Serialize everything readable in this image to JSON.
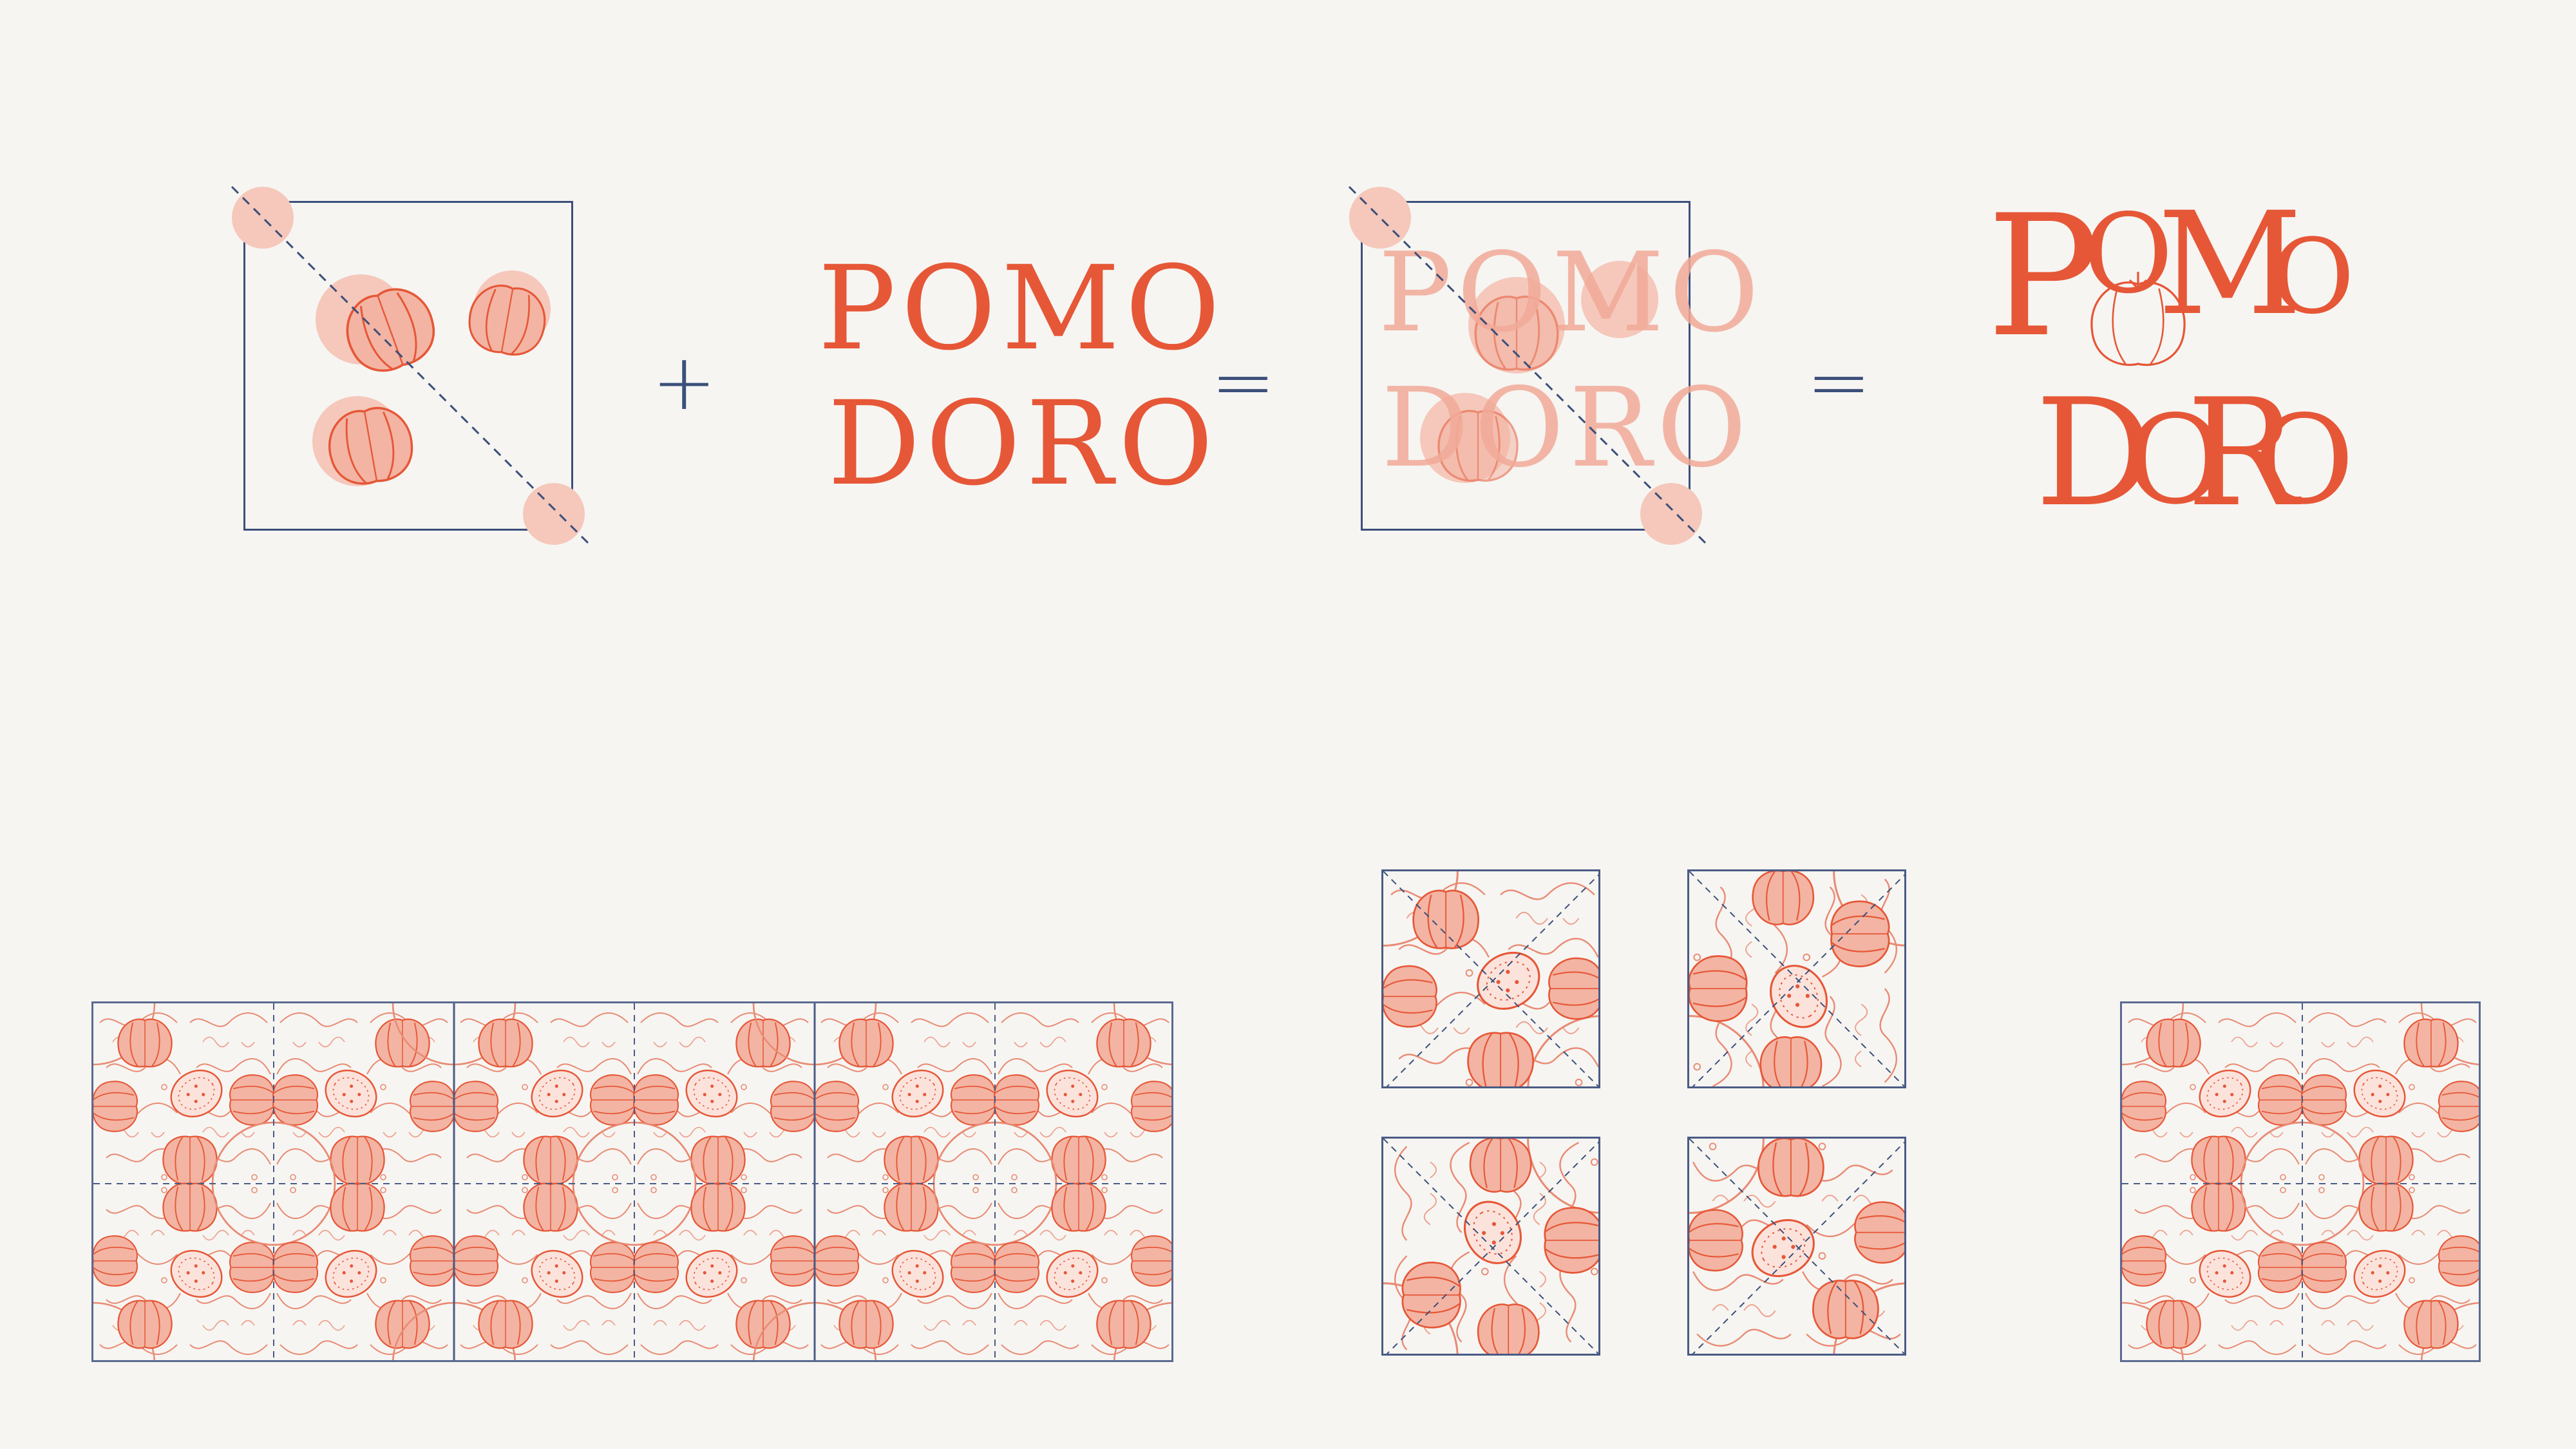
{
  "wordmark": {
    "line1": "POMO",
    "line2": "DORO"
  },
  "logo": {
    "p": "P",
    "m": "M",
    "o": "O",
    "d": "D",
    "r": "R"
  },
  "operators": {
    "plus": "+",
    "equals_1": "=",
    "equals_2": "="
  },
  "colors": {
    "accent": "#e65737",
    "accent_light": "#f2aa98",
    "accent_fill": "#f5c8bb",
    "line": "#3c4f7a",
    "background": "#f6f5f2"
  }
}
